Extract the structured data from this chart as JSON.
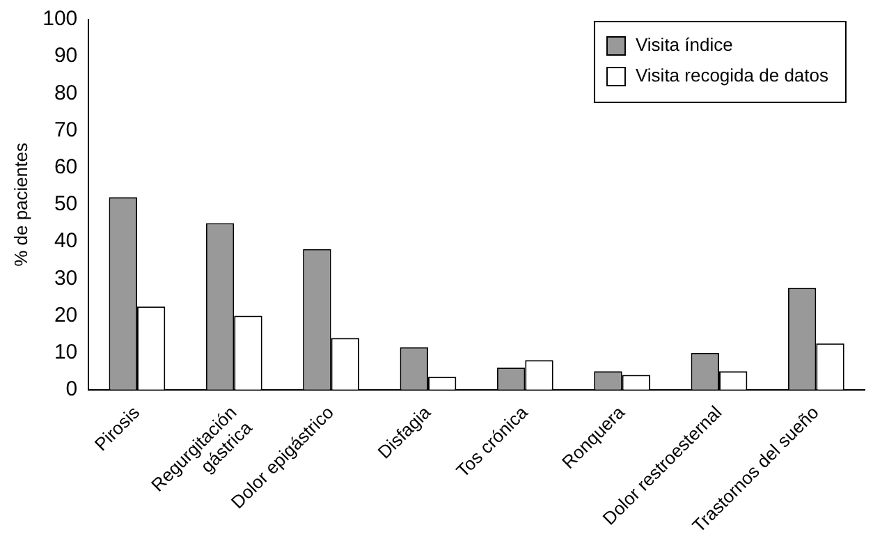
{
  "chart_data": {
    "type": "bar",
    "ylabel": "% de pacientes",
    "categories": [
      "Pirosis",
      "Regurgitación\ngástrica",
      "Dolor epigástrico",
      "Disfagia",
      "Tos crónica",
      "Ronquera",
      "Dolor restroesternal",
      "Trastornos del sueño"
    ],
    "series": [
      {
        "name": "Visita índice",
        "color": "#999999",
        "values": [
          52,
          45,
          38,
          11.5,
          6,
          5,
          10,
          27.5
        ]
      },
      {
        "name": "Visita recogida de datos",
        "color": "#ffffff",
        "values": [
          22.5,
          20,
          14,
          3.5,
          8,
          4,
          5,
          12.5
        ]
      }
    ],
    "ylim": [
      0,
      100
    ],
    "yticks": [
      0,
      10,
      20,
      30,
      40,
      50,
      60,
      70,
      80,
      90,
      100
    ],
    "grid": false,
    "legend": "top right"
  }
}
